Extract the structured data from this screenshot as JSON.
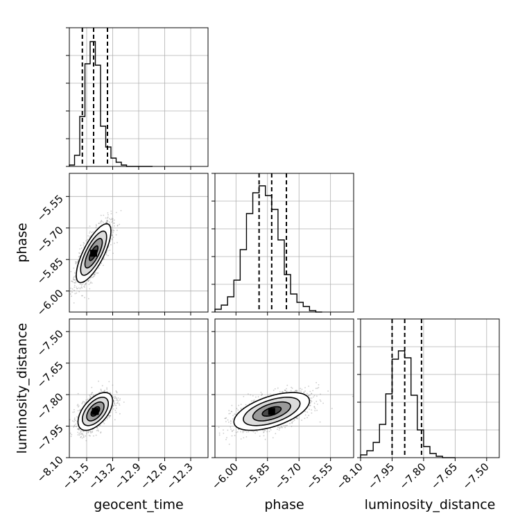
{
  "chart_data": {
    "type": "corner",
    "parameters": [
      "geocent_time",
      "phase",
      "luminosity_distance"
    ],
    "axis_labels": {
      "geocent_time": "geocent_time",
      "phase": "phase",
      "luminosity_distance": "luminosity_distance"
    },
    "ranges": {
      "geocent_time": [
        -13.7,
        -12.1
      ],
      "phase": [
        -6.1,
        -5.44
      ],
      "luminosity_distance": [
        -8.1,
        -7.44
      ]
    },
    "ticks": {
      "geocent_time": [
        -13.5,
        -13.2,
        -12.9,
        -12.6,
        -12.3
      ],
      "phase": [
        -6.0,
        -5.85,
        -5.7,
        -5.55
      ],
      "luminosity_distance": [
        -8.1,
        -7.95,
        -7.8,
        -7.65,
        -7.5
      ]
    },
    "tick_labels": {
      "geocent_time": [
        "−13.5",
        "−13.2",
        "−12.9",
        "−12.6",
        "−12.3"
      ],
      "phase": [
        "−6.00",
        "−5.85",
        "−5.70",
        "−5.55"
      ],
      "luminosity_distance": [
        "−8.10",
        "−7.95",
        "−7.80",
        "−7.65",
        "−7.50"
      ]
    },
    "quantiles": {
      "geocent_time": [
        -13.55,
        -13.42,
        -13.26
      ],
      "phase": [
        -5.89,
        -5.83,
        -5.76
      ],
      "luminosity_distance": [
        -7.95,
        -7.89,
        -7.81
      ]
    },
    "histograms": {
      "geocent_time": {
        "bin_edges": [
          -13.7,
          -13.64,
          -13.58,
          -13.52,
          -13.46,
          -13.4,
          -13.34,
          -13.28,
          -13.22,
          -13.16,
          -13.1,
          -13.04,
          -12.98,
          -12.92,
          -12.86,
          -12.8,
          -12.74
        ],
        "heights": [
          0.01,
          0.08,
          0.36,
          0.74,
          0.9,
          0.73,
          0.29,
          0.14,
          0.06,
          0.03,
          0.01,
          0.0,
          0.0,
          0.0,
          0.0,
          0.0
        ]
      },
      "phase": {
        "bin_edges": [
          -6.1,
          -6.07,
          -6.04,
          -6.01,
          -5.98,
          -5.95,
          -5.92,
          -5.89,
          -5.86,
          -5.83,
          -5.8,
          -5.77,
          -5.74,
          -5.71,
          -5.68,
          -5.65,
          -5.62,
          -5.59
        ],
        "heights": [
          0.02,
          0.05,
          0.11,
          0.23,
          0.45,
          0.71,
          0.86,
          0.91,
          0.84,
          0.74,
          0.52,
          0.27,
          0.13,
          0.07,
          0.04,
          0.01,
          0.0
        ]
      },
      "luminosity_distance": {
        "bin_edges": [
          -8.1,
          -8.07,
          -8.04,
          -8.01,
          -7.98,
          -7.95,
          -7.92,
          -7.89,
          -7.86,
          -7.83,
          -7.8,
          -7.77,
          -7.74,
          -7.71,
          -7.68,
          -7.65
        ],
        "heights": [
          0.02,
          0.05,
          0.11,
          0.24,
          0.46,
          0.71,
          0.77,
          0.72,
          0.45,
          0.2,
          0.08,
          0.03,
          0.01,
          0.0,
          0.0
        ]
      },
      "ymax": 1.0
    },
    "pairs": [
      {
        "x": "geocent_time",
        "y": "phase",
        "center": [
          -13.42,
          -5.82
        ],
        "sigma": [
          0.1,
          0.07
        ],
        "correlation": 0.75,
        "contour_levels_sigma": [
          0.5,
          1.0,
          1.5,
          2.0
        ],
        "n_points": 1500
      },
      {
        "x": "geocent_time",
        "y": "luminosity_distance",
        "center": [
          -13.4,
          -7.88
        ],
        "sigma": [
          0.1,
          0.045
        ],
        "correlation": 0.55,
        "contour_levels_sigma": [
          0.5,
          1.0,
          1.5,
          2.0
        ],
        "n_points": 1500
      },
      {
        "x": "phase",
        "y": "luminosity_distance",
        "center": [
          -5.83,
          -7.88
        ],
        "sigma": [
          0.09,
          0.045
        ],
        "correlation": 0.55,
        "contour_levels_sigma": [
          0.5,
          1.0,
          1.5,
          2.0
        ],
        "n_points": 1500
      }
    ],
    "grid": true,
    "colors": {
      "line": "#000000",
      "grid": "#b0b0b0",
      "scatter": "#8c8c8c"
    }
  }
}
